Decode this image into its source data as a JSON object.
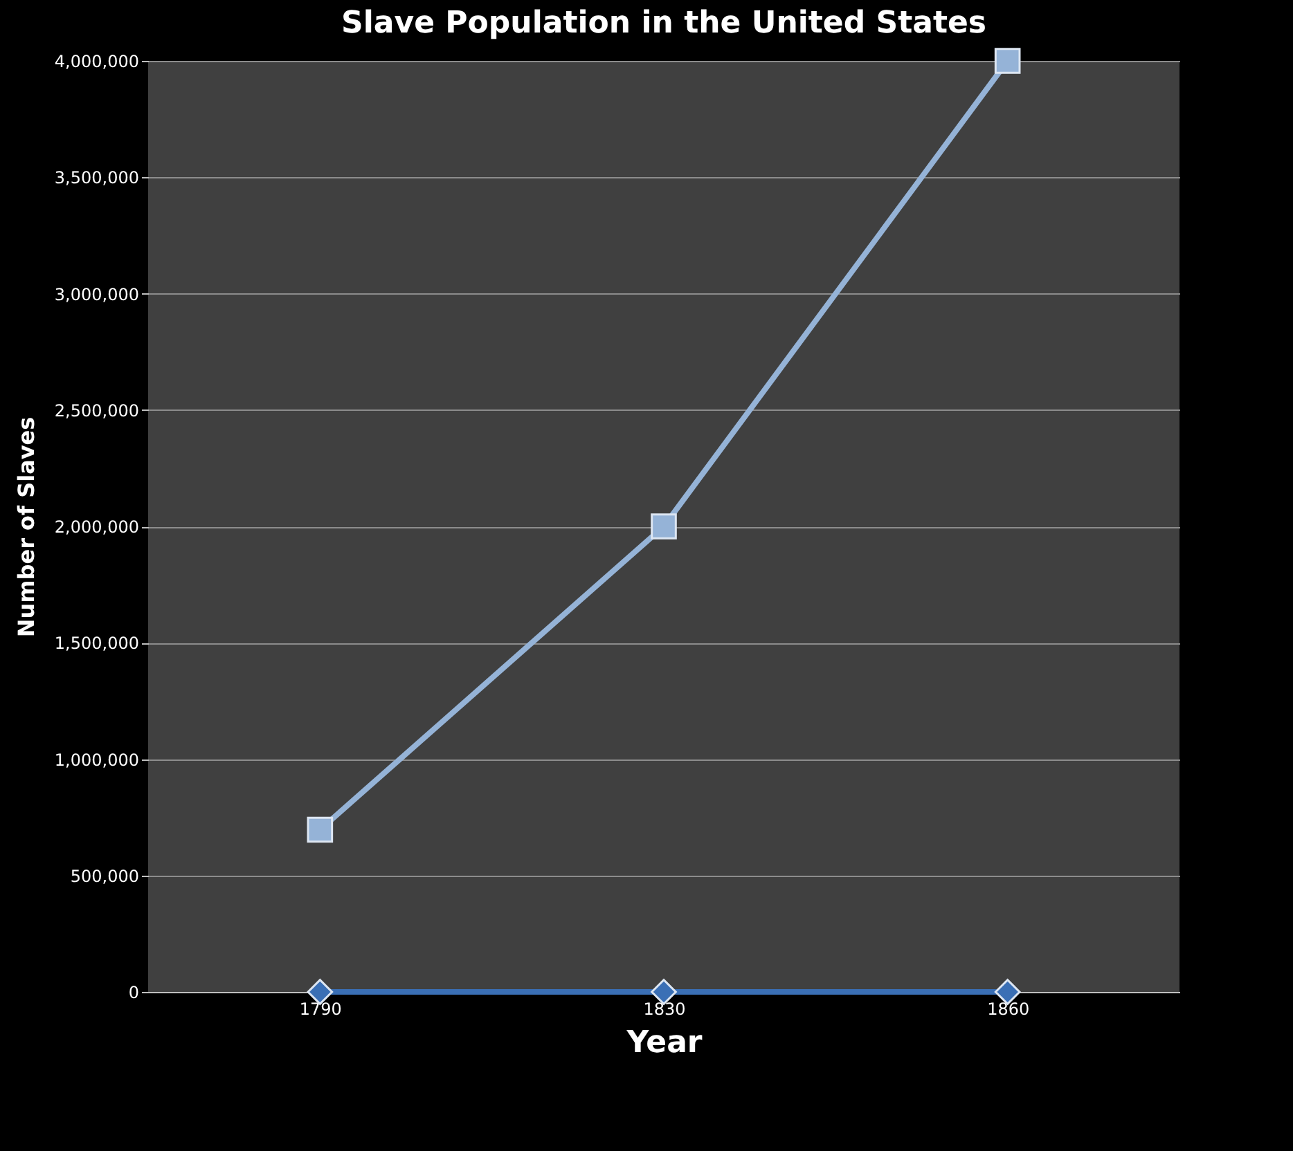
{
  "chart_data": {
    "type": "line",
    "title": "Slave Population in the United States",
    "xlabel": "Year",
    "ylabel": "Number of Slaves",
    "categories": [
      "1790",
      "1830",
      "1860"
    ],
    "series": [
      {
        "color": "#95b3d7",
        "marker": "square",
        "values": [
          697000,
          2000000,
          4000000
        ]
      },
      {
        "color": "#3a6fb5",
        "marker": "diamond",
        "values": [
          0,
          0,
          0
        ]
      }
    ],
    "ylim": [
      0,
      4000000
    ],
    "yticks": [
      0,
      {
        "value": 500000,
        "label": "500,000"
      },
      {
        "value": 1000000,
        "label": "1,000,000"
      },
      {
        "value": 1500000,
        "label": "1,500,000"
      },
      {
        "value": 2000000,
        "label": "2,000,000"
      },
      {
        "value": 2500000,
        "label": "2,500,000"
      },
      {
        "value": 3000000,
        "label": "3,000,000"
      },
      {
        "value": 3500000,
        "label": "3,500,000"
      },
      {
        "value": 4000000,
        "label": "4,000,000"
      }
    ],
    "grid": "y",
    "line_style": "solid"
  }
}
